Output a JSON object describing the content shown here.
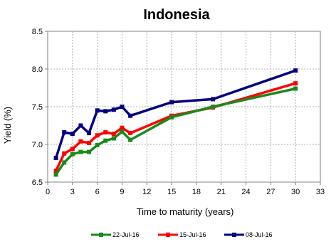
{
  "chart_data": {
    "type": "line",
    "title": "Indonesia",
    "xlabel": "Time to maturity (years)",
    "ylabel": "Yield (%)",
    "xlim": [
      0,
      33
    ],
    "ylim": [
      6.5,
      8.5
    ],
    "xticks": [
      0,
      3,
      6,
      9,
      12,
      15,
      18,
      21,
      24,
      27,
      30,
      33
    ],
    "yticks": [
      6.5,
      7.0,
      7.5,
      8.0,
      8.5
    ],
    "ytick_labels": [
      "6.5",
      "7.0",
      "7.5",
      "8.0",
      "8.5"
    ],
    "grid": true,
    "legend_position": "bottom",
    "x": [
      1,
      2,
      3,
      4,
      5,
      6,
      7,
      8,
      9,
      10,
      15,
      20,
      30
    ],
    "series": [
      {
        "name": "22-Jul-16",
        "color": "#1a8a1a",
        "values": [
          6.6,
          6.76,
          6.87,
          6.9,
          6.9,
          6.99,
          7.05,
          7.08,
          7.17,
          7.06,
          7.36,
          7.5,
          7.74
        ]
      },
      {
        "name": "15-Jul-16",
        "color": "#ff0000",
        "values": [
          6.65,
          6.88,
          6.94,
          7.04,
          7.02,
          7.12,
          7.16,
          7.14,
          7.22,
          7.15,
          7.38,
          7.49,
          7.81
        ]
      },
      {
        "name": "08-Jul-16",
        "color": "#000080",
        "values": [
          6.82,
          7.16,
          7.14,
          7.25,
          7.15,
          7.45,
          7.44,
          7.46,
          7.5,
          7.38,
          7.56,
          7.6,
          7.98
        ]
      }
    ]
  }
}
